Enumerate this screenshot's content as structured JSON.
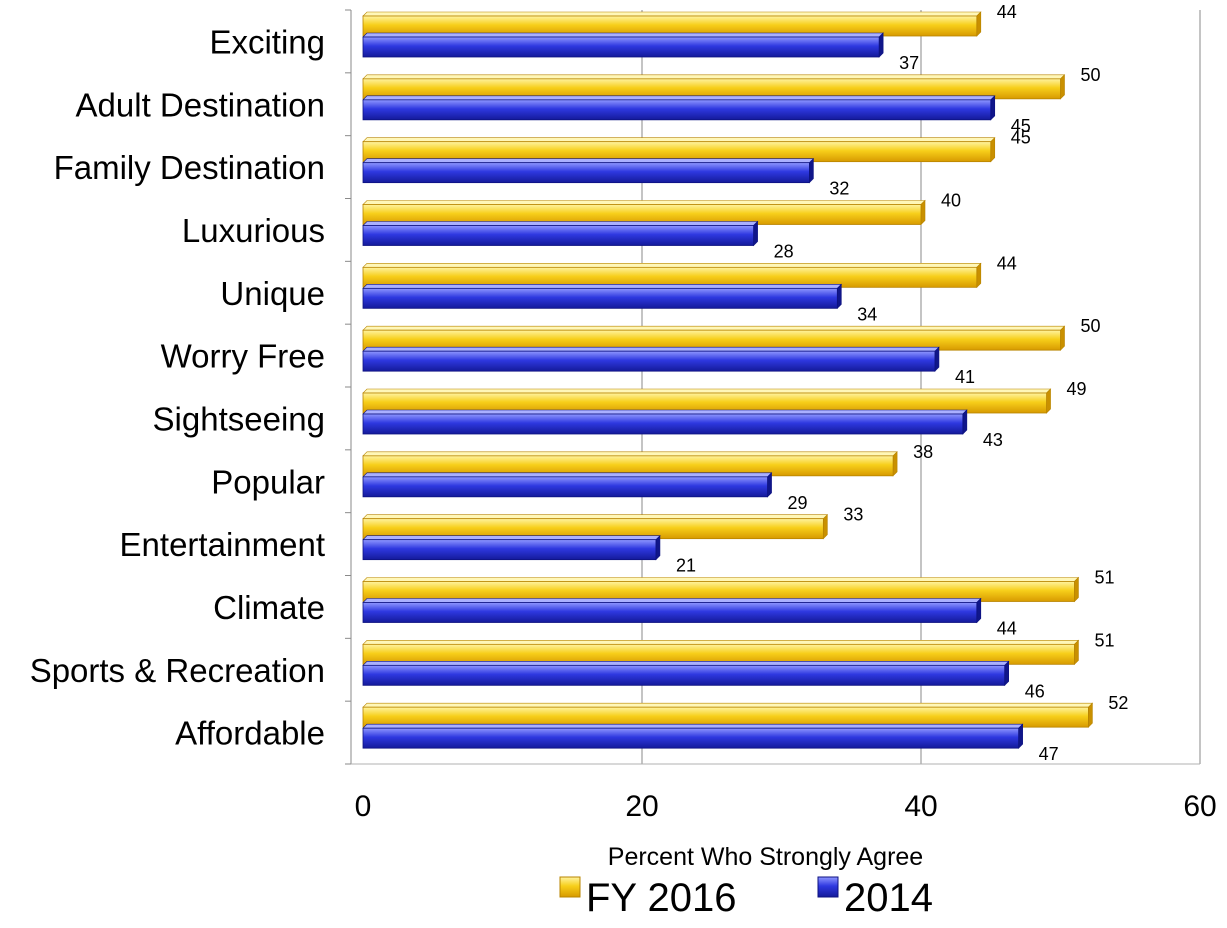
{
  "chart_data": {
    "type": "bar",
    "orientation": "horizontal",
    "categories": [
      "Exciting",
      "Adult Destination",
      "Family Destination",
      "Luxurious",
      "Unique",
      "Worry Free",
      "Sightseeing",
      "Popular",
      "Entertainment",
      "Climate",
      "Sports & Recreation",
      "Affordable"
    ],
    "series": [
      {
        "name": "FY 2016",
        "color": "#f5c400",
        "values": [
          44,
          50,
          45,
          40,
          44,
          50,
          49,
          38,
          33,
          51,
          51,
          52
        ]
      },
      {
        "name": "2014",
        "color": "#2a35d8",
        "values": [
          37,
          45,
          32,
          28,
          34,
          41,
          43,
          29,
          21,
          44,
          46,
          47
        ]
      }
    ],
    "xlabel": "Percent Who Strongly Agree",
    "xlim": [
      0,
      60
    ],
    "xticks": [
      0,
      20,
      40,
      60
    ],
    "grid": true,
    "legend_position": "bottom"
  }
}
